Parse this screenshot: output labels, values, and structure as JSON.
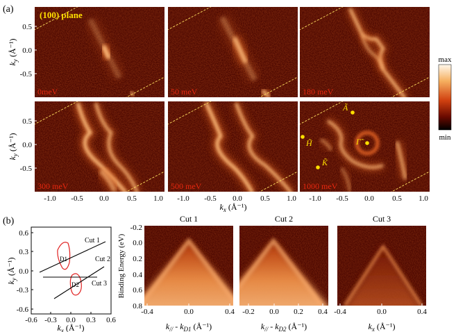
{
  "figure_a": {
    "label": "(a)",
    "plane": "(100) plane",
    "panels": [
      "0meV",
      "50 meV",
      "180 meV",
      "300 meV",
      "500 meV",
      "1000 meV"
    ],
    "ky_ticks": [
      "0.5",
      "0.0",
      "-0.5"
    ],
    "kx_ticks": [
      "-1.0",
      "-0.5",
      "0.0",
      "0.5",
      "1.0"
    ],
    "ky_label": [
      "k",
      "y",
      " (Å⁻¹)"
    ],
    "kx_label": [
      "k",
      "x",
      " (Å⁻¹)"
    ],
    "colorbar": {
      "max": "max",
      "min": "min"
    },
    "points": [
      "Ã",
      "H̃",
      "Γ̃",
      "K̃"
    ]
  },
  "figure_b": {
    "label": "(b)",
    "inset": {
      "ky_ticks": [
        "0.6",
        "0.3",
        "0.0",
        "-0.3",
        "-0.6"
      ],
      "kx_ticks": [
        "-0.6",
        "-0.3",
        "0.0",
        "0.3",
        "0.6"
      ],
      "ky_label": [
        "k",
        "y",
        " (Å⁻¹)"
      ],
      "kx_label": [
        "k",
        "x",
        " (Å⁻¹)"
      ],
      "cuts": [
        "Cut 1",
        "Cut 2",
        "Cut 3"
      ],
      "points": [
        "D1",
        "D2"
      ]
    },
    "y_label": "Binding Energy (eV)",
    "y_ticks": [
      "-0.2",
      "0.0",
      "0.2",
      "0.4",
      "0.6",
      "0.8"
    ],
    "panels": [
      {
        "title": "Cut 1",
        "x_ticks": [
          "-0.4",
          "0.0",
          "0.4"
        ],
        "x_label": [
          "k",
          "//",
          " - k",
          "D1",
          " (Å⁻¹)"
        ]
      },
      {
        "title": "Cut 2",
        "x_ticks": [
          "-0.2",
          "0.0",
          "0.2",
          "0.4"
        ],
        "x_label": [
          "k",
          "//",
          " - k",
          "D2",
          " (Å⁻¹)"
        ]
      },
      {
        "title": "Cut 3",
        "x_ticks": [
          "-0.4",
          "0.0",
          "0.4"
        ],
        "x_label": [
          "k",
          "x",
          " (Å⁻¹)"
        ]
      }
    ]
  }
}
